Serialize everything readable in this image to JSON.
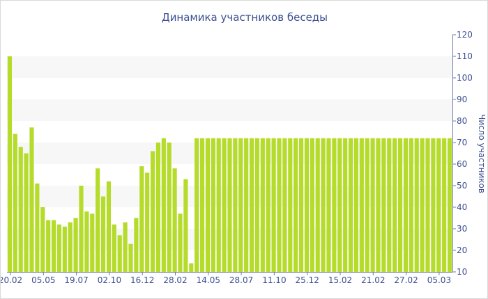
{
  "chart_data": {
    "type": "bar",
    "title": "Динамика участников беседы",
    "xlabel": "",
    "ylabel": "Число участников",
    "ylim": [
      10,
      120
    ],
    "yticks": [
      10,
      20,
      30,
      40,
      50,
      60,
      70,
      80,
      90,
      100,
      110,
      120
    ],
    "x_tick_labels": [
      "20.02",
      "05.05",
      "19.07",
      "02.10",
      "16.12",
      "28.02",
      "14.05",
      "28.07",
      "11.10",
      "25.12",
      "15.02",
      "21.02",
      "27.02",
      "05.03"
    ],
    "grid": "alternating horizontal bands",
    "y_axis_side": "right",
    "colors": {
      "bar": "#b5db2b",
      "band": "#f7f7f7",
      "text": "#3c4f8f",
      "axis": "#6e7aa6"
    },
    "values": [
      110,
      74,
      68,
      65,
      77,
      51,
      40,
      34,
      34,
      32,
      31,
      33,
      35,
      50,
      38,
      37,
      58,
      45,
      52,
      32,
      27,
      33,
      23,
      35,
      59,
      56,
      66,
      70,
      72,
      70,
      58,
      37,
      53,
      14,
      72,
      72,
      72,
      72,
      72,
      72,
      72,
      72,
      72,
      72,
      72,
      72,
      72,
      72,
      72,
      72,
      72,
      72,
      72,
      72,
      72,
      72,
      72,
      72,
      72,
      72,
      72,
      72,
      72,
      72,
      72,
      72,
      72,
      72,
      72,
      72,
      72,
      72,
      72,
      72,
      72,
      72,
      72,
      72,
      72,
      72,
      72
    ]
  }
}
